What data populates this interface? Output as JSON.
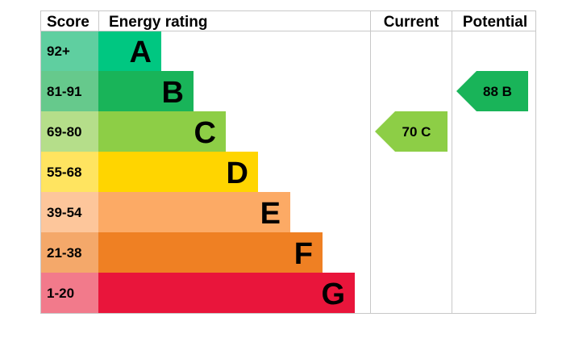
{
  "chart_data": {
    "type": "table",
    "headers": {
      "score": "Score",
      "rating": "Energy rating",
      "current": "Current",
      "potential": "Potential"
    },
    "bands": [
      {
        "letter": "A",
        "range": "92+",
        "min": 92,
        "max": 100,
        "color": "#00c781",
        "score_bg": "#5fcfa0"
      },
      {
        "letter": "B",
        "range": "81-91",
        "min": 81,
        "max": 91,
        "color": "#19b459",
        "score_bg": "#66c98c"
      },
      {
        "letter": "C",
        "range": "69-80",
        "min": 69,
        "max": 80,
        "color": "#8dce46",
        "score_bg": "#b5de8a"
      },
      {
        "letter": "D",
        "range": "55-68",
        "min": 55,
        "max": 68,
        "color": "#ffd500",
        "score_bg": "#ffe460"
      },
      {
        "letter": "E",
        "range": "39-54",
        "min": 39,
        "max": 54,
        "color": "#fcaa65",
        "score_bg": "#fdc69b"
      },
      {
        "letter": "F",
        "range": "21-38",
        "min": 21,
        "max": 38,
        "color": "#ef8023",
        "score_bg": "#f4a86a"
      },
      {
        "letter": "G",
        "range": "1-20",
        "min": 1,
        "max": 20,
        "color": "#e9153b",
        "score_bg": "#f27a8b"
      }
    ],
    "current": {
      "value": 70,
      "letter": "C",
      "label": "70 C",
      "color": "#8dce46"
    },
    "potential": {
      "value": 88,
      "letter": "B",
      "label": "88 B",
      "color": "#19b459"
    }
  }
}
